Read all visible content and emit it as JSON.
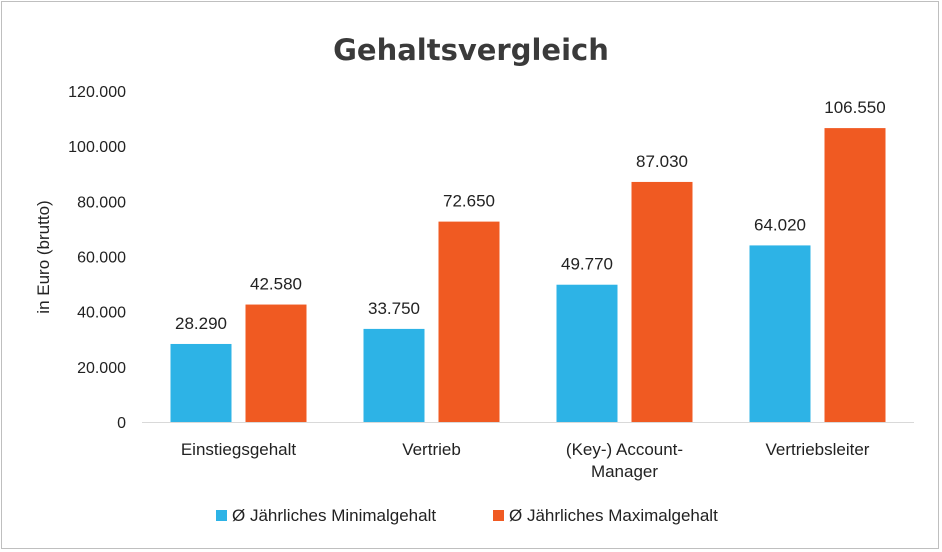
{
  "chart_data": {
    "type": "bar",
    "title": "Gehaltsvergleich",
    "xlabel": "",
    "ylabel": "in Euro (brutto)",
    "ylim": [
      0,
      120000
    ],
    "yticks": [
      {
        "value": 0,
        "label": "0"
      },
      {
        "value": 20000,
        "label": "20.000"
      },
      {
        "value": 40000,
        "label": "40.000"
      },
      {
        "value": 60000,
        "label": "60.000"
      },
      {
        "value": 80000,
        "label": "80.000"
      },
      {
        "value": 100000,
        "label": "100.000"
      },
      {
        "value": 120000,
        "label": "120.000"
      }
    ],
    "categories": [
      [
        "Einstiegsgehalt"
      ],
      [
        "Vertrieb"
      ],
      [
        "(Key-) Account-",
        "Manager"
      ],
      [
        "Vertriebsleiter"
      ]
    ],
    "series": [
      {
        "name": "Ø Jährliches Minimalgehalt",
        "color": "#2db3e6",
        "values": [
          28290,
          33750,
          49770,
          64020
        ],
        "labels": [
          "28.290",
          "33.750",
          "49.770",
          "64.020"
        ]
      },
      {
        "name": "Ø Jährliches Maximalgehalt",
        "color": "#f05a22",
        "values": [
          42580,
          72650,
          87030,
          106550
        ],
        "labels": [
          "42.580",
          "72.650",
          "87.030",
          "106.550"
        ]
      }
    ],
    "grid": false,
    "legend": "bottom"
  }
}
